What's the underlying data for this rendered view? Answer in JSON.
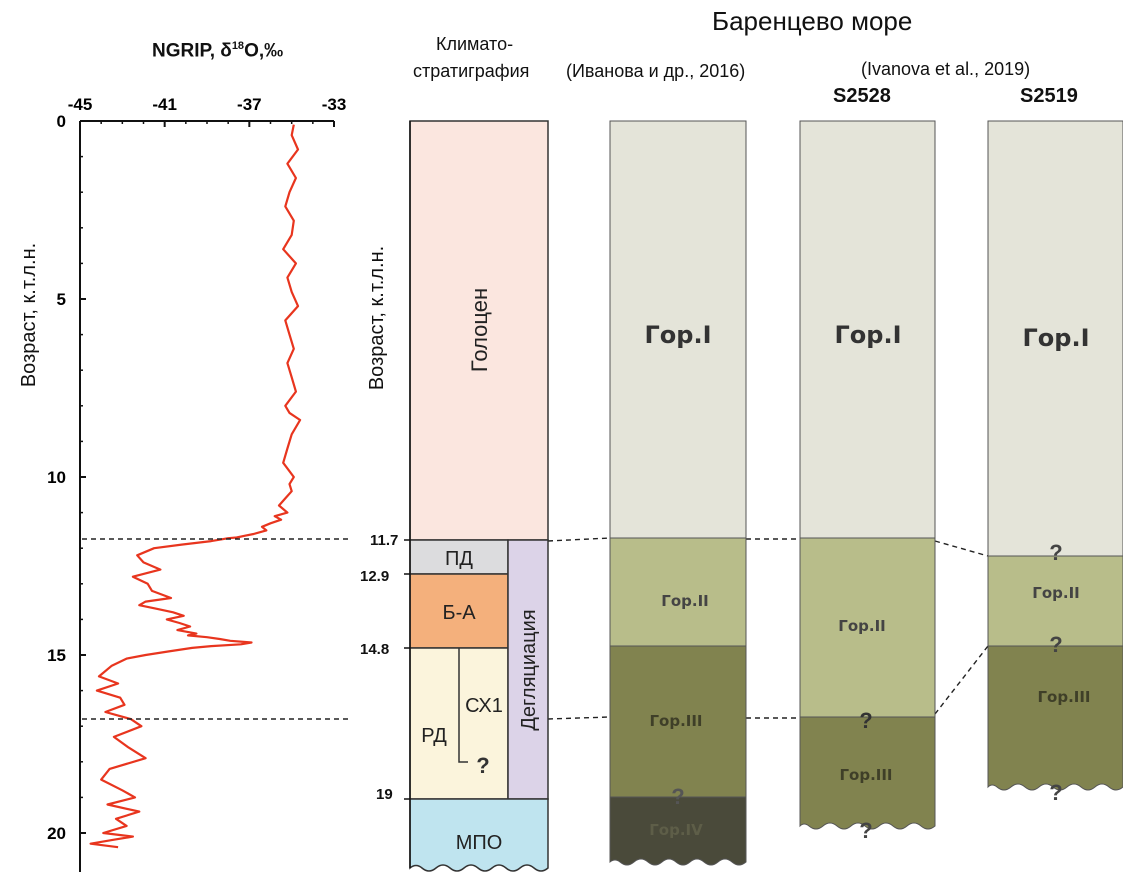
{
  "header": {
    "barents_title": "Баренцево море",
    "climatostrat_line1": "Климато-",
    "climatostrat_line2": "стратиграфия",
    "ivanova2016": "(Иванова и др., 2016)",
    "ivanova2019": "(Ivanova et al., 2019)",
    "s2528": "S2528",
    "s2519": "S2519"
  },
  "ngrip": {
    "title_prefix": "NGRIP, δ",
    "title_sup": "18",
    "title_suffix": "O,‰",
    "ylabel": "Возраст, к.т.л.н.",
    "x_ticks": [
      "-45",
      "-41",
      "-37",
      "-33"
    ],
    "x_tick_values": [
      -45,
      -41,
      -37,
      -33
    ],
    "y_ticks": [
      "0",
      "5",
      "10",
      "15",
      "20"
    ],
    "y_tick_values": [
      0,
      5,
      10,
      15,
      20
    ]
  },
  "strat": {
    "ylabel": "Возраст, к.т.л.н.",
    "age_labels": [
      "11.7",
      "12.9",
      "14.8",
      "19"
    ],
    "holocene": "Голоцен",
    "pd": "ПД",
    "ba": "Б-А",
    "rd": "РД",
    "sx1": "СХ1",
    "q": "?",
    "deglaciation": "Дегляциация",
    "mpo": "МПО"
  },
  "columns": {
    "gor1": "Гор.I",
    "gor2": "Гор.II",
    "gor3": "Гор.III",
    "gor4": "Гор.IV",
    "q": "?"
  },
  "colors": {
    "curve": "#e8351e",
    "holocene": "#fbe6df",
    "pd": "#dcdcde",
    "ba": "#f4b07c",
    "rd": "#fbf4dc",
    "deglaciation": "#dcd3e8",
    "mpo": "#bfe4ef",
    "gor1": "#e4e4d9",
    "gor2": "#b8bd8a",
    "gor3": "#81834f",
    "gor4": "#4a4a3a"
  },
  "chart_data": {
    "type": "line",
    "title": "NGRIP, δ18O,‰",
    "xlabel": "",
    "ylabel": "Возраст, к.т.л.н.",
    "xlim": [
      -45,
      -33
    ],
    "ylim": [
      0,
      20
    ],
    "y_inverted": true,
    "series": [
      {
        "x": [
          -34.9,
          -35.0,
          -34.7,
          -35.2,
          -34.8,
          -35.1,
          -35.3,
          -34.9,
          -35.0,
          -35.4,
          -34.8,
          -35.2,
          -35.0,
          -34.7,
          -35.3,
          -35.1,
          -34.9,
          -35.2,
          -35.0,
          -34.8,
          -35.3,
          -35.1,
          -34.6,
          -35.0,
          -35.2,
          -35.4,
          -34.9,
          -35.1,
          -35.0,
          -35.3,
          -35.6,
          -35.2,
          -35.8,
          -35.5,
          -36.0,
          -36.4,
          -36.2,
          -36.8,
          -37.2,
          -37.6,
          -38.0,
          -38.3,
          -38.8,
          -39.5,
          -40.2,
          -41.5,
          -42.3,
          -42.0,
          -41.2,
          -42.5,
          -41.8,
          -41.6,
          -40.7,
          -41.9,
          -42.2,
          -41.4,
          -40.6,
          -40.1,
          -40.9,
          -40.3,
          -39.8,
          -40.4,
          -39.5,
          -39.9,
          -39.0,
          -38.4,
          -37.9,
          -36.9,
          -37.4,
          -38.8,
          -39.7,
          -40.8,
          -41.9,
          -42.8,
          -43.5,
          -44.1,
          -43.2,
          -44.2,
          -43.1,
          -42.9,
          -43.8,
          -42.6,
          -42.1,
          -43.4,
          -42.7,
          -41.9,
          -43.6,
          -44.0,
          -43.0,
          -42.4,
          -43.7,
          -42.2,
          -43.3,
          -42.8,
          -43.9,
          -42.5,
          -43.5,
          -44.5,
          -43.2
        ],
        "y": [
          0.1,
          0.4,
          0.8,
          1.2,
          1.6,
          2.0,
          2.4,
          2.8,
          3.2,
          3.6,
          4.0,
          4.4,
          4.8,
          5.2,
          5.6,
          6.0,
          6.4,
          6.8,
          7.2,
          7.6,
          8.0,
          8.2,
          8.4,
          8.8,
          9.2,
          9.6,
          10.0,
          10.2,
          10.4,
          10.6,
          10.8,
          11.0,
          11.1,
          11.2,
          11.3,
          11.4,
          11.5,
          11.6,
          11.65,
          11.7,
          11.72,
          11.75,
          11.8,
          11.85,
          11.9,
          12.0,
          12.2,
          12.4,
          12.6,
          12.8,
          13.0,
          13.2,
          13.4,
          13.5,
          13.6,
          13.7,
          13.8,
          13.9,
          14.0,
          14.1,
          14.2,
          14.3,
          14.4,
          14.45,
          14.5,
          14.55,
          14.6,
          14.65,
          14.7,
          14.75,
          14.8,
          14.9,
          15.0,
          15.1,
          15.3,
          15.6,
          15.8,
          16.0,
          16.2,
          16.4,
          16.6,
          16.8,
          17.0,
          17.3,
          17.6,
          17.9,
          18.2,
          18.5,
          18.8,
          19.0,
          19.2,
          19.4,
          19.6,
          19.8,
          20.0,
          20.1,
          20.2,
          20.3,
          20.4
        ]
      }
    ]
  }
}
